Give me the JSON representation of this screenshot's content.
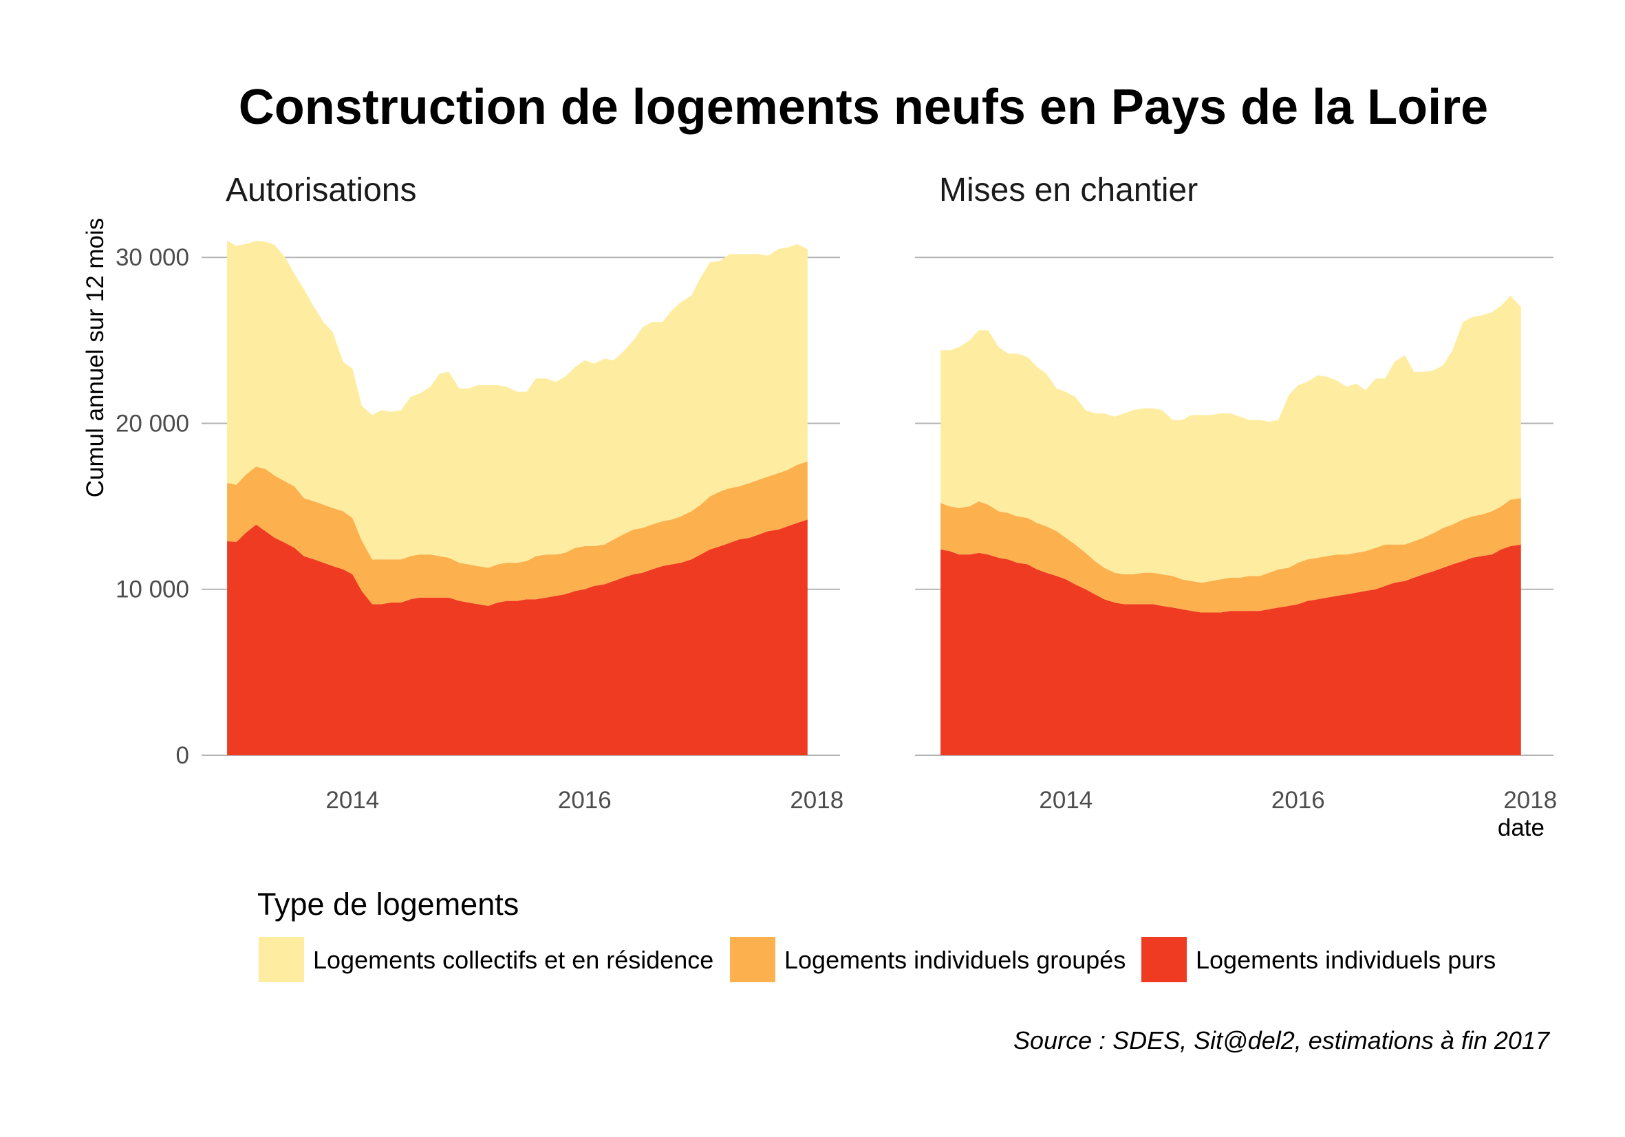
{
  "chart_data": {
    "type": "area",
    "stacked": true,
    "title": "Construction de logements neufs en Pays de la Loire",
    "ylabel": "Cumul annuel sur 12 mois",
    "xlabel": "date",
    "ylim": [
      0,
      31500
    ],
    "xlim": [
      2012.7,
      2018.2
    ],
    "yticks": [
      0,
      10000,
      20000,
      30000
    ],
    "ytick_labels": [
      "0",
      "10 000",
      "20 000",
      "30 000"
    ],
    "xticks": [
      2014,
      2016,
      2018
    ],
    "xtick_labels": [
      "2014",
      "2016",
      "2018"
    ],
    "grid": true,
    "legend": {
      "title": "Type de logements",
      "position": "bottom",
      "entries": [
        {
          "key": "collectifs",
          "label": "Logements collectifs et en résidence",
          "color": "#FEEDA0"
        },
        {
          "key": "groupes",
          "label": "Logements individuels groupés",
          "color": "#FDB14E"
        },
        {
          "key": "purs",
          "label": "Logements individuels purs",
          "color": "#EF3B22"
        }
      ]
    },
    "caption": "Source : SDES, Sit@del2, estimations à fin 2017",
    "facets": [
      {
        "name": "Autorisations",
        "x": [
          2012.92,
          2013.0,
          2013.08,
          2013.17,
          2013.25,
          2013.33,
          2013.42,
          2013.5,
          2013.58,
          2013.67,
          2013.75,
          2013.83,
          2013.92,
          2014.0,
          2014.08,
          2014.17,
          2014.25,
          2014.33,
          2014.42,
          2014.5,
          2014.58,
          2014.67,
          2014.75,
          2014.83,
          2014.92,
          2015.0,
          2015.08,
          2015.17,
          2015.25,
          2015.33,
          2015.42,
          2015.5,
          2015.58,
          2015.67,
          2015.75,
          2015.83,
          2015.92,
          2016.0,
          2016.08,
          2016.17,
          2016.25,
          2016.33,
          2016.42,
          2016.5,
          2016.58,
          2016.67,
          2016.75,
          2016.83,
          2016.92,
          2017.0,
          2017.08,
          2017.17,
          2017.25,
          2017.33,
          2017.42,
          2017.5,
          2017.58,
          2017.67,
          2017.75,
          2017.83,
          2017.92
        ],
        "purs": [
          12900,
          12850,
          13400,
          13900,
          13500,
          13100,
          12800,
          12500,
          12000,
          11800,
          11600,
          11400,
          11200,
          10900,
          9900,
          9100,
          9100,
          9200,
          9200,
          9400,
          9500,
          9500,
          9500,
          9500,
          9300,
          9200,
          9100,
          9000,
          9200,
          9300,
          9300,
          9400,
          9400,
          9500,
          9600,
          9700,
          9900,
          10000,
          10200,
          10300,
          10500,
          10700,
          10900,
          11000,
          11200,
          11400,
          11500,
          11600,
          11800,
          12100,
          12400,
          12600,
          12800,
          13000,
          13100,
          13300,
          13500,
          13600,
          13800,
          14000,
          14200
        ],
        "groupes": [
          3500,
          3450,
          3500,
          3500,
          3750,
          3750,
          3700,
          3700,
          3500,
          3500,
          3500,
          3500,
          3500,
          3400,
          3050,
          2700,
          2700,
          2600,
          2600,
          2600,
          2600,
          2600,
          2500,
          2400,
          2300,
          2300,
          2300,
          2300,
          2300,
          2300,
          2300,
          2300,
          2600,
          2600,
          2500,
          2500,
          2600,
          2600,
          2400,
          2400,
          2500,
          2600,
          2700,
          2700,
          2700,
          2700,
          2700,
          2800,
          2900,
          3000,
          3200,
          3300,
          3300,
          3200,
          3300,
          3300,
          3300,
          3400,
          3400,
          3500,
          3500
        ],
        "collectifs": [
          14600,
          14400,
          13900,
          13600,
          13700,
          13900,
          13500,
          12800,
          12600,
          11700,
          11000,
          10600,
          9000,
          9000,
          8100,
          8700,
          9000,
          8900,
          9000,
          9600,
          9700,
          10100,
          11000,
          11200,
          10500,
          10600,
          10900,
          11000,
          10800,
          10600,
          10300,
          10200,
          10700,
          10600,
          10400,
          10600,
          10900,
          11200,
          11000,
          11200,
          10800,
          11000,
          11400,
          12100,
          12200,
          12000,
          12600,
          12900,
          13000,
          13700,
          14100,
          13900,
          14100,
          14000,
          13800,
          13600,
          13300,
          13500,
          13400,
          13300,
          12800
        ]
      },
      {
        "name": "Mises en chantier",
        "x": [
          2012.92,
          2013.0,
          2013.08,
          2013.17,
          2013.25,
          2013.33,
          2013.42,
          2013.5,
          2013.58,
          2013.67,
          2013.75,
          2013.83,
          2013.92,
          2014.0,
          2014.08,
          2014.17,
          2014.25,
          2014.33,
          2014.42,
          2014.5,
          2014.58,
          2014.67,
          2014.75,
          2014.83,
          2014.92,
          2015.0,
          2015.08,
          2015.17,
          2015.25,
          2015.33,
          2015.42,
          2015.5,
          2015.58,
          2015.67,
          2015.75,
          2015.83,
          2015.92,
          2016.0,
          2016.08,
          2016.17,
          2016.25,
          2016.33,
          2016.42,
          2016.5,
          2016.58,
          2016.67,
          2016.75,
          2016.83,
          2016.92,
          2017.0,
          2017.08,
          2017.17,
          2017.25,
          2017.33,
          2017.42,
          2017.5,
          2017.58,
          2017.67,
          2017.75,
          2017.83,
          2017.92
        ],
        "purs": [
          12400,
          12300,
          12100,
          12100,
          12200,
          12100,
          11900,
          11800,
          11600,
          11500,
          11200,
          11000,
          10800,
          10600,
          10300,
          10000,
          9700,
          9400,
          9200,
          9100,
          9100,
          9100,
          9100,
          9000,
          8900,
          8800,
          8700,
          8600,
          8600,
          8600,
          8700,
          8700,
          8700,
          8700,
          8800,
          8900,
          9000,
          9100,
          9300,
          9400,
          9500,
          9600,
          9700,
          9800,
          9900,
          10000,
          10200,
          10400,
          10500,
          10700,
          10900,
          11100,
          11300,
          11500,
          11700,
          11900,
          12000,
          12100,
          12400,
          12600,
          12700
        ],
        "groupes": [
          2800,
          2700,
          2800,
          2900,
          3100,
          3000,
          2800,
          2800,
          2800,
          2800,
          2800,
          2800,
          2700,
          2500,
          2400,
          2200,
          2000,
          1900,
          1800,
          1800,
          1800,
          1900,
          1900,
          1900,
          1900,
          1800,
          1800,
          1800,
          1900,
          2000,
          2000,
          2000,
          2100,
          2100,
          2200,
          2300,
          2300,
          2500,
          2500,
          2500,
          2500,
          2500,
          2400,
          2400,
          2400,
          2500,
          2500,
          2300,
          2200,
          2200,
          2200,
          2300,
          2400,
          2400,
          2500,
          2500,
          2500,
          2600,
          2600,
          2800,
          2800
        ],
        "collectifs": [
          9200,
          9400,
          9700,
          10000,
          10300,
          10500,
          9900,
          9600,
          9800,
          9700,
          9400,
          9200,
          8600,
          8800,
          8900,
          8600,
          8900,
          9300,
          9400,
          9700,
          9900,
          9900,
          9900,
          9900,
          9400,
          9600,
          10000,
          10100,
          10000,
          10000,
          9900,
          9700,
          9400,
          9400,
          9100,
          9000,
          10400,
          10700,
          10700,
          11000,
          10800,
          10500,
          10100,
          10200,
          9700,
          10200,
          10000,
          11000,
          11400,
          10200,
          10000,
          9800,
          9800,
          10500,
          11900,
          12000,
          12000,
          12000,
          12100,
          12300,
          11500
        ]
      }
    ]
  }
}
